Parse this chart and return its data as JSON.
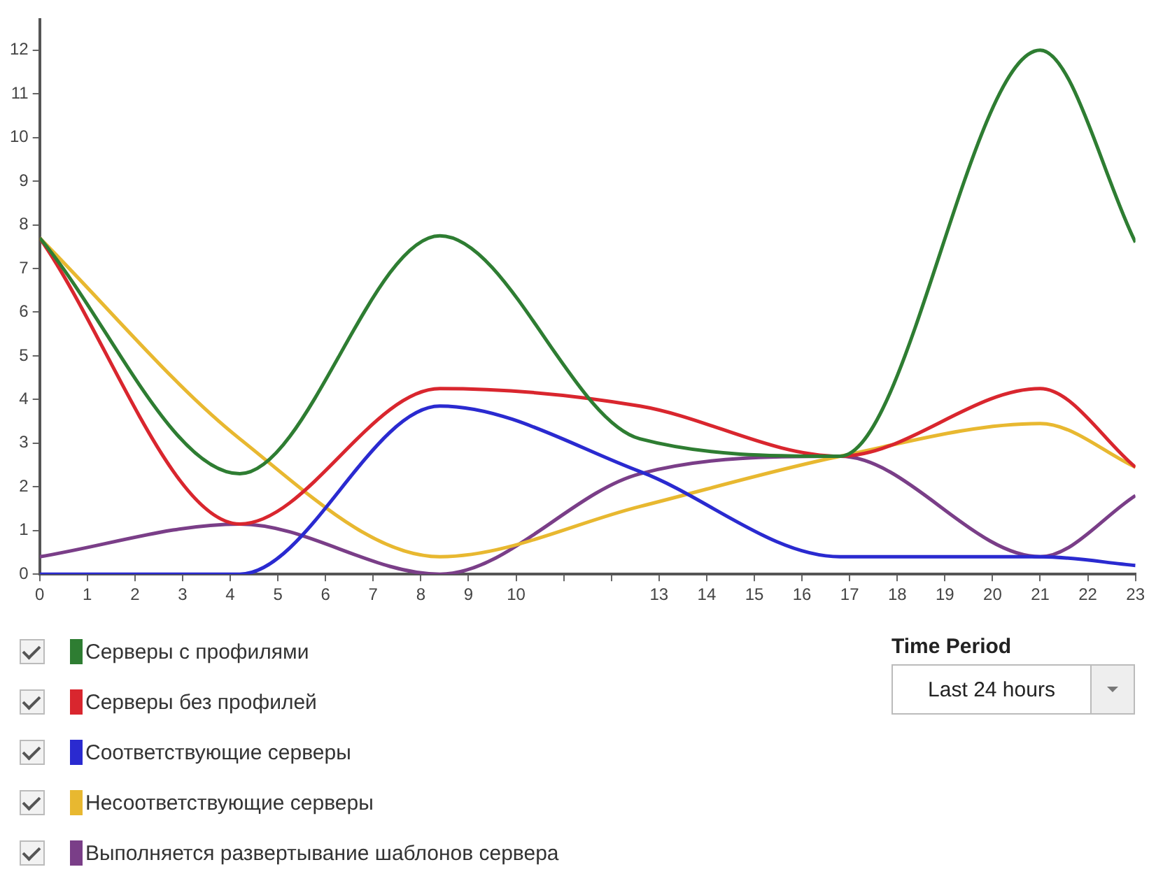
{
  "chart_data": {
    "type": "line",
    "x": [
      0,
      4.2,
      8.4,
      12.6,
      16.8,
      21,
      23
    ],
    "xlim": [
      0,
      23
    ],
    "xticks": [
      0,
      1,
      2,
      3,
      4,
      5,
      6,
      7,
      8,
      9,
      10,
      {
        "value": 11,
        "label": null
      },
      {
        "value": 12,
        "label": null
      },
      13,
      14,
      15,
      16,
      17,
      18,
      19,
      20,
      21,
      22,
      23
    ],
    "ylim": [
      0,
      12.7
    ],
    "yticks": [
      0,
      1,
      2,
      3,
      4,
      5,
      6,
      7,
      8,
      9,
      10,
      11,
      12
    ],
    "grid": false,
    "marker": "none",
    "line_style": "solid",
    "legend": "bottom left",
    "annotations": [
      "Time Period",
      "Last 24 hours"
    ],
    "series": [
      {
        "name": "Серверы с профилями",
        "color": "#2e7d32",
        "values": [
          7.7,
          2.3,
          7.75,
          3.1,
          2.7,
          12.0,
          7.6
        ]
      },
      {
        "name": "Серверы без профилей",
        "color": "#d9262e",
        "values": [
          7.7,
          1.15,
          4.25,
          3.85,
          2.7,
          4.25,
          2.45
        ]
      },
      {
        "name": "Соответствующие серверы",
        "color": "#2a2ad0",
        "values": [
          0,
          0,
          3.85,
          2.35,
          0.4,
          0.4,
          0.2
        ]
      },
      {
        "name": "Несоответствующие серверы",
        "color": "#e8b830",
        "values": [
          7.7,
          3.1,
          0.4,
          1.55,
          2.7,
          3.45,
          2.45
        ]
      },
      {
        "name": "Выполняется развертывание шаблонов сервера",
        "color": "#7a3e88",
        "values": [
          0.4,
          1.15,
          0,
          2.3,
          2.7,
          0.4,
          1.8
        ]
      }
    ]
  }
}
